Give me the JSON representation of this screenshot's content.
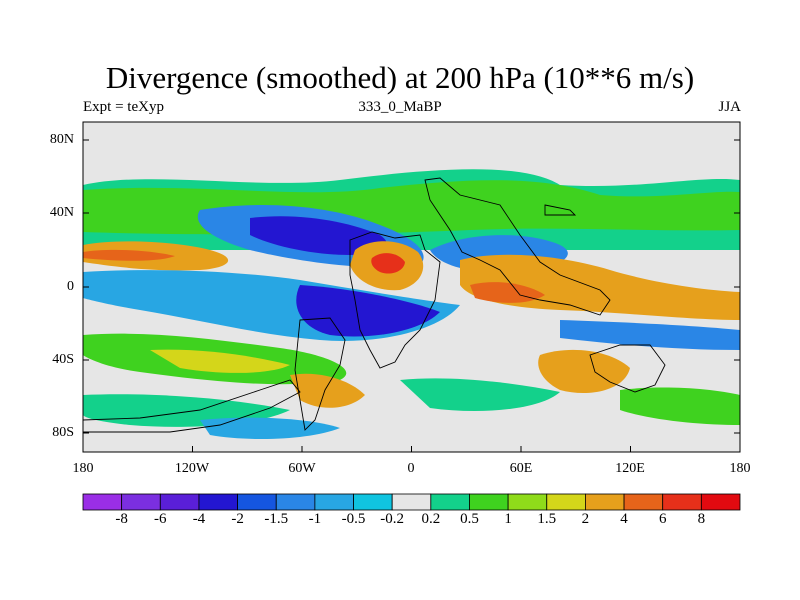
{
  "title": "Divergence (smoothed) at 200 hPa (10**6 m/s)",
  "left_label": "Expt = teXyp",
  "center_label": "333_0_MaBP",
  "right_label": "JJA",
  "y_axis_labels": [
    "80N",
    "40N",
    "0",
    "40S",
    "80S"
  ],
  "x_axis_labels": [
    "180",
    "120W",
    "60W",
    "0",
    "60E",
    "120E",
    "180"
  ],
  "colorbar": {
    "labels": [
      "-8",
      "-6",
      "-4",
      "-2",
      "-1.5",
      "-1",
      "-0.5",
      "-0.2",
      "0.2",
      "0.5",
      "1",
      "1.5",
      "2",
      "4",
      "6",
      "8"
    ],
    "colors": [
      "#9a2ee6",
      "#7b2fe0",
      "#5a1fd8",
      "#2316d1",
      "#1556e0",
      "#2a86e6",
      "#28a6e3",
      "#10c4e0",
      "#e6e6e6",
      "#13d18b",
      "#3fd21f",
      "#8fdb1a",
      "#d4d61a",
      "#e6a01c",
      "#e6641a",
      "#e6301a",
      "#e20a10"
    ]
  }
}
